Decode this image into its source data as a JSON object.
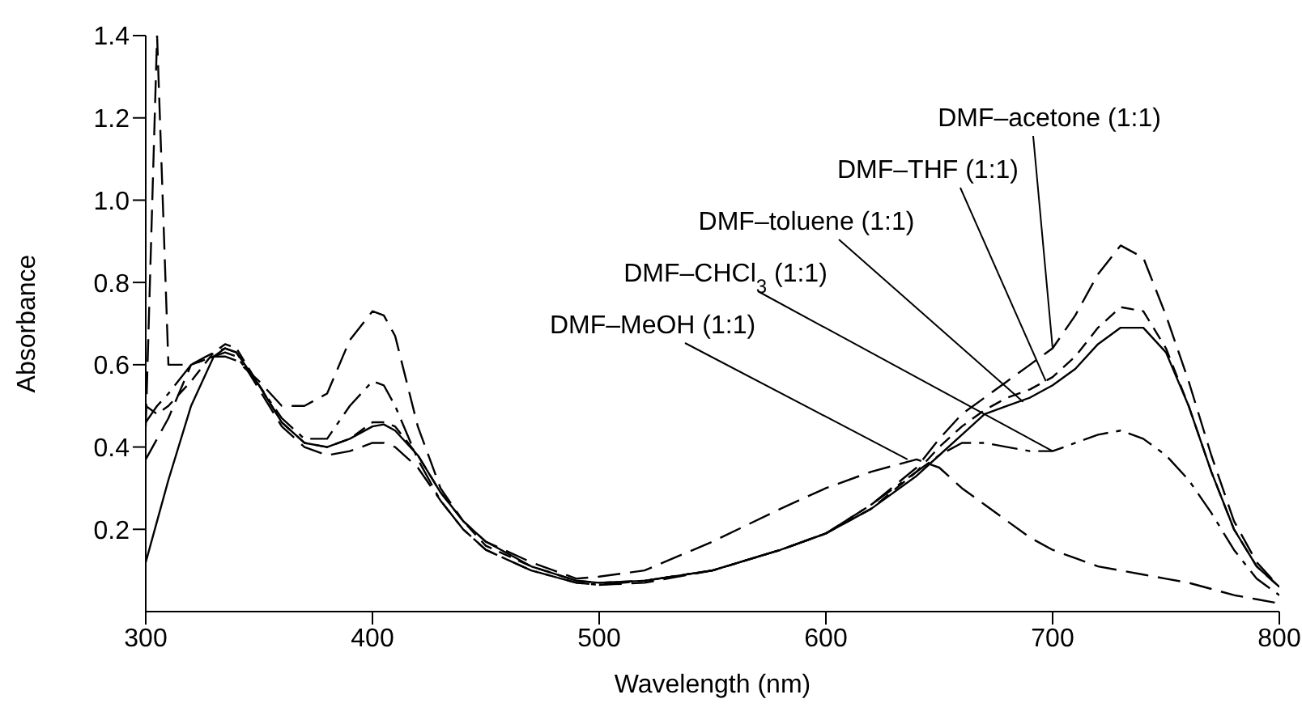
{
  "chart_data": {
    "type": "line",
    "xlabel": "Wavelength (nm)",
    "ylabel": "Absorbance",
    "xlim": [
      300,
      800
    ],
    "xticks": [
      300,
      400,
      500,
      600,
      700,
      800
    ],
    "ylim": [
      0,
      1.4
    ],
    "yticks": [
      0.2,
      0.4,
      0.6,
      0.8,
      {
        "value": 1,
        "label": "1.0"
      },
      1.2,
      1.4
    ],
    "marker": "none",
    "x": [
      300,
      305,
      310,
      320,
      330,
      335,
      340,
      350,
      360,
      370,
      380,
      390,
      400,
      405,
      410,
      420,
      430,
      440,
      450,
      470,
      490,
      500,
      520,
      550,
      580,
      600,
      620,
      640,
      650,
      660,
      670,
      680,
      690,
      700,
      710,
      720,
      730,
      740,
      750,
      760,
      770,
      780,
      790,
      800
    ],
    "series": [
      {
        "color": "#000000",
        "line_style": "dashed",
        "values": [
          0.45,
          1.4,
          0.6,
          0.6,
          0.63,
          0.64,
          0.63,
          0.54,
          0.45,
          0.4,
          0.38,
          0.39,
          0.41,
          0.41,
          0.4,
          0.35,
          0.27,
          0.2,
          0.15,
          0.1,
          0.07,
          0.065,
          0.07,
          0.1,
          0.15,
          0.19,
          0.26,
          0.35,
          0.42,
          0.48,
          0.52,
          0.56,
          0.6,
          0.64,
          0.72,
          0.82,
          0.89,
          0.86,
          0.72,
          0.56,
          0.38,
          0.22,
          0.12,
          0.06
        ]
      },
      {
        "color": "#000000",
        "line_style": "dashed",
        "values": [
          0.5,
          0.48,
          0.5,
          0.56,
          0.63,
          0.65,
          0.64,
          0.55,
          0.46,
          0.41,
          0.4,
          0.42,
          0.46,
          0.46,
          0.45,
          0.38,
          0.29,
          0.22,
          0.16,
          0.11,
          0.075,
          0.07,
          0.075,
          0.1,
          0.15,
          0.19,
          0.25,
          0.34,
          0.4,
          0.45,
          0.49,
          0.52,
          0.54,
          0.57,
          0.62,
          0.69,
          0.74,
          0.73,
          0.64,
          0.5,
          0.34,
          0.2,
          0.11,
          0.06
        ]
      },
      {
        "color": "#000000",
        "line_style": "solid",
        "values": [
          0.12,
          0.22,
          0.32,
          0.5,
          0.62,
          0.64,
          0.63,
          0.55,
          0.46,
          0.41,
          0.4,
          0.42,
          0.45,
          0.455,
          0.44,
          0.38,
          0.29,
          0.22,
          0.17,
          0.11,
          0.075,
          0.07,
          0.075,
          0.1,
          0.15,
          0.19,
          0.25,
          0.33,
          0.38,
          0.43,
          0.48,
          0.5,
          0.52,
          0.55,
          0.59,
          0.65,
          0.69,
          0.69,
          0.63,
          0.5,
          0.34,
          0.2,
          0.11,
          0.06
        ]
      },
      {
        "color": "#000000",
        "line_style": "dashed",
        "values": [
          0.46,
          0.5,
          0.53,
          0.6,
          0.62,
          0.63,
          0.62,
          0.55,
          0.47,
          0.42,
          0.42,
          0.5,
          0.56,
          0.55,
          0.5,
          0.37,
          0.27,
          0.2,
          0.15,
          0.1,
          0.07,
          0.065,
          0.075,
          0.1,
          0.15,
          0.19,
          0.26,
          0.34,
          0.38,
          0.41,
          0.41,
          0.4,
          0.39,
          0.39,
          0.41,
          0.43,
          0.44,
          0.42,
          0.38,
          0.32,
          0.24,
          0.15,
          0.08,
          0.04
        ]
      },
      {
        "color": "#000000",
        "line_style": "dashed",
        "values": [
          0.37,
          0.42,
          0.47,
          0.6,
          0.62,
          0.62,
          0.61,
          0.56,
          0.5,
          0.5,
          0.53,
          0.66,
          0.73,
          0.72,
          0.67,
          0.45,
          0.3,
          0.22,
          0.17,
          0.12,
          0.08,
          0.085,
          0.1,
          0.17,
          0.25,
          0.3,
          0.34,
          0.37,
          0.35,
          0.3,
          0.26,
          0.22,
          0.18,
          0.15,
          0.13,
          0.11,
          0.1,
          0.09,
          0.08,
          0.07,
          0.055,
          0.04,
          0.03,
          0.02
        ]
      }
    ],
    "annotations": [
      {
        "text": "DMF–acetone (1:1)",
        "x": 700,
        "y": 0.64
      },
      {
        "text": "DMF–THF (1:1)",
        "x": 697,
        "y": 0.56
      },
      {
        "text": "DMF–toluene (1:1)",
        "x": 687,
        "y": 0.51
      },
      {
        "text": "DMF–CHCl$_{3}$ (1:1)",
        "x": 700,
        "y": 0.39
      },
      {
        "text": "DMF–MeOH (1:1)",
        "x": 636,
        "y": 0.37
      }
    ]
  }
}
